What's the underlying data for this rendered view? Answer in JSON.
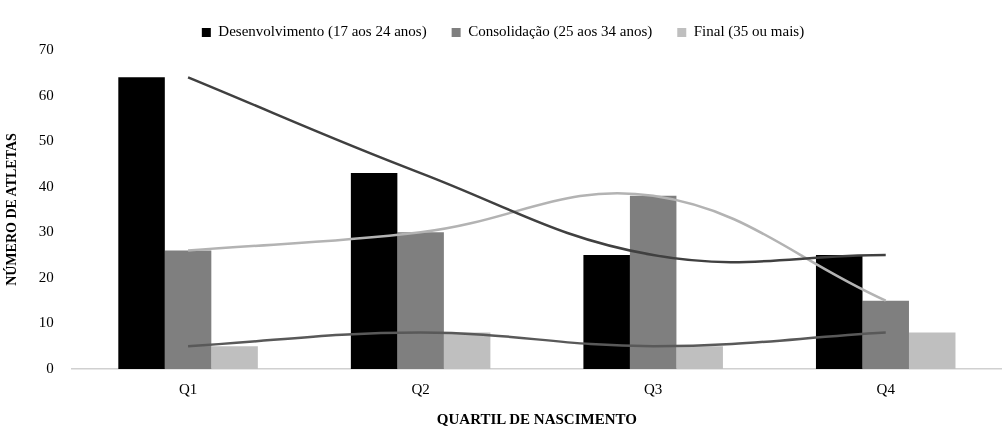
{
  "chart_data": {
    "type": "bar",
    "xlabel": "QUARTIL DE NASCIMENTO",
    "ylabel": "NÚMERO DE ATLETAS",
    "categories": [
      "Q1",
      "Q2",
      "Q3",
      "Q4"
    ],
    "series": [
      {
        "name": "Desenvolvimento (17 aos 24 anos)",
        "color": "#000000",
        "values": [
          64,
          43,
          25,
          25
        ]
      },
      {
        "name": "Consolidação (25 aos 34 anos)",
        "color": "#7f7f7f",
        "values": [
          26,
          30,
          38,
          15
        ]
      },
      {
        "name": "Final (35 ou mais)",
        "color": "#bfbfbf",
        "values": [
          5,
          8,
          5,
          8
        ]
      },
      {
        "type": "line",
        "color": "#404040",
        "values": [
          64,
          43,
          25,
          25
        ]
      },
      {
        "type": "line",
        "color": "#b3b3b3",
        "values": [
          26,
          30,
          38,
          15
        ]
      },
      {
        "type": "line",
        "color": "#595959",
        "values": [
          5,
          8,
          5,
          8
        ]
      }
    ],
    "ylim": [
      0,
      70
    ],
    "yticks": [
      0,
      10,
      20,
      30,
      40,
      50,
      60,
      70
    ],
    "grid": false,
    "legend": "top",
    "marker": "none"
  }
}
